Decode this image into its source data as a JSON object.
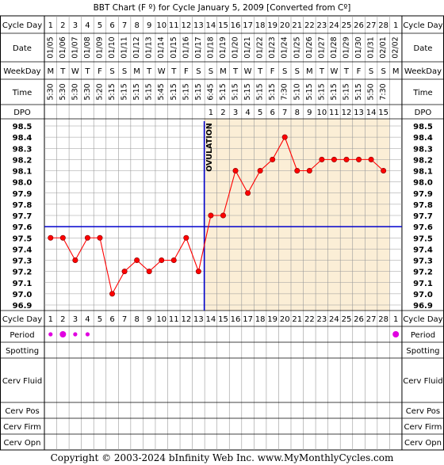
{
  "title": "BBT Chart (F º) for Cycle January 5, 2009  [Converted from Cº]",
  "footer": "Copyright © 2003-2024 bInfinity Web Inc.    www.MyMonthlyCycles.com",
  "row_labels": {
    "cycle_day": "Cycle Day",
    "date": "Date",
    "weekday": "WeekDay",
    "time": "Time",
    "dpo": "DPO",
    "period": "Period",
    "spotting": "Spotting",
    "cerv_fluid": "Cerv Fluid",
    "cerv_pos": "Cerv Pos",
    "cerv_firm": "Cerv Firm",
    "cerv_opn": "Cerv Opn"
  },
  "ovulation_label": "OVULATION",
  "colors": {
    "temp_line": "#ff0000",
    "coverline": "#0000cc",
    "ovulation_line": "#0000cc",
    "post_ovulation_bg": "#fbeed6",
    "period_dot": "#e000e0",
    "grid": "#999999"
  },
  "cycle_days": [
    1,
    2,
    3,
    4,
    5,
    6,
    7,
    8,
    9,
    10,
    11,
    12,
    13,
    14,
    15,
    16,
    17,
    18,
    19,
    20,
    21,
    22,
    23,
    24,
    25,
    26,
    27,
    28,
    1
  ],
  "dates": [
    "01/05",
    "01/06",
    "01/07",
    "01/08",
    "01/09",
    "01/10",
    "01/11",
    "01/12",
    "01/13",
    "01/14",
    "01/15",
    "01/16",
    "01/17",
    "01/18",
    "01/19",
    "01/20",
    "01/21",
    "01/22",
    "01/23",
    "01/24",
    "01/25",
    "01/26",
    "01/27",
    "01/28",
    "01/29",
    "01/30",
    "01/31",
    "02/01",
    "02/02"
  ],
  "weekdays": [
    "M",
    "T",
    "W",
    "T",
    "F",
    "S",
    "S",
    "M",
    "T",
    "W",
    "T",
    "F",
    "S",
    "S",
    "M",
    "T",
    "W",
    "T",
    "F",
    "S",
    "S",
    "M",
    "T",
    "W",
    "T",
    "F",
    "S",
    "S",
    "M"
  ],
  "times": [
    "5:30",
    "5:30",
    "5:30",
    "5:30",
    "5:20",
    "5:15",
    "5:15",
    "5:15",
    "5:15",
    "5:45",
    "5:15",
    "5:15",
    "5:15",
    "6:45",
    "5:15",
    "5:15",
    "5:15",
    "5:15",
    "5:15",
    "7:30",
    "5:10",
    "5:15",
    "5:15",
    "5:15",
    "5:15",
    "5:15",
    "5:50",
    "7:30",
    ""
  ],
  "dpo": [
    "",
    "",
    "",
    "",
    "",
    "",
    "",
    "",
    "",
    "",
    "",
    "",
    "",
    "1",
    "2",
    "3",
    "4",
    "5",
    "6",
    "7",
    "8",
    "9",
    "10",
    "11",
    "12",
    "13",
    "14",
    "15",
    ""
  ],
  "period": [
    1,
    2,
    1,
    1,
    0,
    0,
    0,
    0,
    0,
    0,
    0,
    0,
    0,
    0,
    0,
    0,
    0,
    0,
    0,
    0,
    0,
    0,
    0,
    0,
    0,
    0,
    0,
    0,
    2
  ],
  "chart_data": {
    "type": "line",
    "title": "BBT Chart (F º) for Cycle January 5, 2009  [Converted from Cº]",
    "xlabel": "Cycle Day",
    "ylabel": "",
    "x": [
      1,
      2,
      3,
      4,
      5,
      6,
      7,
      8,
      9,
      10,
      11,
      12,
      13,
      14,
      15,
      16,
      17,
      18,
      19,
      20,
      21,
      22,
      23,
      24,
      25,
      26,
      27,
      28
    ],
    "values": [
      97.5,
      97.5,
      97.3,
      97.5,
      97.5,
      97.0,
      97.2,
      97.3,
      97.2,
      97.3,
      97.3,
      97.5,
      97.2,
      97.7,
      97.7,
      98.1,
      97.9,
      98.1,
      98.2,
      98.4,
      98.1,
      98.1,
      98.2,
      98.2,
      98.2,
      98.2,
      98.2,
      98.1
    ],
    "ylim": [
      96.9,
      98.5
    ],
    "yticks": [
      "98.5",
      "98.4",
      "98.3",
      "98.2",
      "98.1",
      "98.0",
      "97.9",
      "97.8",
      "97.7",
      "97.6",
      "97.5",
      "97.4",
      "97.3",
      "97.2",
      "97.1",
      "97.0",
      "96.9"
    ],
    "coverline": 97.6,
    "ovulation_day": 13,
    "grid": true
  }
}
